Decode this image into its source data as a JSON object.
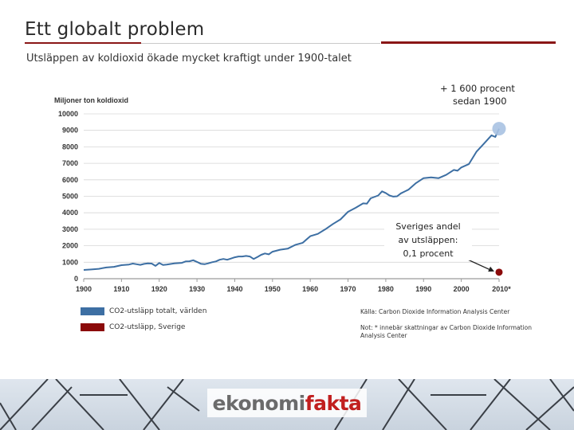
{
  "slide": {
    "title": "Ett globalt problem",
    "subtitle": "Utsläppen av koldioxid ökade mycket kraftigt under 1900-talet"
  },
  "colors": {
    "accent": "#8a1616",
    "world_series": "#3d6fa3",
    "sweden_series": "#8b0a0a",
    "marker_world": "#a9c2e2"
  },
  "chart_data": {
    "type": "line",
    "ylabel": "Miljoner ton koldioxid",
    "ylim": [
      0,
      10000
    ],
    "yticks": [
      0,
      1000,
      2000,
      3000,
      4000,
      5000,
      6000,
      7000,
      8000,
      9000,
      10000
    ],
    "xlim": [
      1900,
      2010
    ],
    "xticks": [
      "1900",
      "1910",
      "1920",
      "1930",
      "1940",
      "1950",
      "1960",
      "1970",
      "1980",
      "1990",
      "2000",
      "2010*"
    ],
    "grid": true,
    "series": [
      {
        "name": "CO2-utsläpp totalt, världen",
        "x": [
          1900,
          1902,
          1904,
          1906,
          1908,
          1910,
          1912,
          1913,
          1914,
          1915,
          1916,
          1917,
          1918,
          1919,
          1920,
          1921,
          1922,
          1924,
          1926,
          1927,
          1928,
          1929,
          1930,
          1931,
          1932,
          1933,
          1934,
          1935,
          1936,
          1937,
          1938,
          1939,
          1940,
          1941,
          1942,
          1943,
          1944,
          1945,
          1946,
          1947,
          1948,
          1949,
          1950,
          1952,
          1954,
          1956,
          1958,
          1960,
          1962,
          1964,
          1966,
          1968,
          1970,
          1972,
          1974,
          1975,
          1976,
          1978,
          1979,
          1980,
          1981,
          1982,
          1983,
          1984,
          1986,
          1988,
          1990,
          1992,
          1994,
          1996,
          1998,
          1999,
          2000,
          2002,
          2004,
          2006,
          2008,
          2009,
          2010
        ],
        "values": [
          530,
          560,
          600,
          680,
          720,
          820,
          860,
          920,
          880,
          840,
          900,
          930,
          920,
          780,
          950,
          830,
          860,
          930,
          960,
          1050,
          1060,
          1120,
          1020,
          910,
          880,
          930,
          1000,
          1050,
          1150,
          1200,
          1150,
          1220,
          1300,
          1350,
          1350,
          1380,
          1350,
          1200,
          1320,
          1450,
          1530,
          1480,
          1640,
          1760,
          1820,
          2050,
          2180,
          2580,
          2720,
          3000,
          3320,
          3600,
          4060,
          4300,
          4570,
          4550,
          4880,
          5050,
          5300,
          5200,
          5050,
          4980,
          5000,
          5180,
          5400,
          5800,
          6100,
          6150,
          6100,
          6300,
          6600,
          6550,
          6750,
          6950,
          7700,
          8200,
          8700,
          8600,
          9100
        ]
      },
      {
        "name": "CO2-utsläpp, Sverige",
        "x": [
          2010
        ],
        "values": [
          9
        ]
      }
    ],
    "annotations": {
      "world_increase_line1": "+ 1 600 procent",
      "world_increase_line2": "sedan 1900",
      "sweden_line1": "Sveriges andel",
      "sweden_line2": "av utsläppen:",
      "sweden_line3": "0,1 procent"
    }
  },
  "notes": {
    "source": "Källa: Carbon Dioxide Information Analysis Center",
    "footnote": "Not: * innebär skattningar av Carbon Dioxide Information Analysis Center"
  },
  "footer": {
    "logo_part1": "ekonomi",
    "logo_part2": "fakta"
  }
}
